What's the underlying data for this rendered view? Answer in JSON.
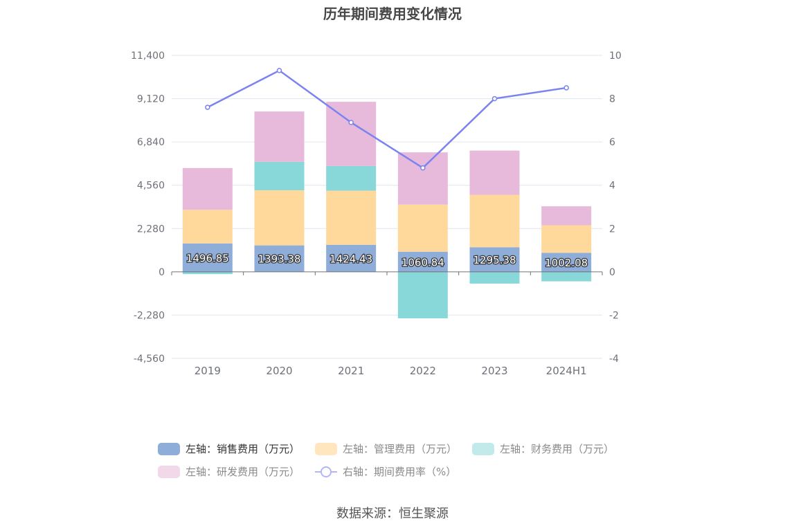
{
  "title": "历年期间费用变化情况",
  "source": "数据来源：恒生聚源",
  "chart_data": {
    "type": "bar",
    "stacked": true,
    "categories": [
      "2019",
      "2020",
      "2021",
      "2022",
      "2023",
      "2024H1"
    ],
    "left_axis": {
      "min": -4560,
      "max": 11400,
      "ticks": [
        "11,400",
        "9,120",
        "6,840",
        "4,560",
        "2,280",
        "0",
        "-2,280",
        "-4,560"
      ],
      "tick_values": [
        11400,
        9120,
        6840,
        4560,
        2280,
        0,
        -2280,
        -4560
      ]
    },
    "right_axis": {
      "min": -4,
      "max": 10,
      "ticks": [
        "10",
        "8",
        "6",
        "4",
        "2",
        "0",
        "-2",
        "-4"
      ],
      "tick_values": [
        10,
        8,
        6,
        4,
        2,
        0,
        -2,
        -4
      ]
    },
    "grid": true,
    "series": [
      {
        "name": "左轴：销售费用（万元）",
        "axis": "left",
        "kind": "bar",
        "color": "#8fadd9",
        "values": [
          1496.85,
          1393.38,
          1424.43,
          1060.84,
          1295.38,
          1002.08
        ],
        "labels": [
          "1496.85",
          "1393.38",
          "1424.43",
          "1060.84",
          "1295.38",
          "1002.08"
        ]
      },
      {
        "name": "左轴：管理费用（万元）",
        "axis": "left",
        "kind": "bar",
        "color": "#ffd99c",
        "values": [
          1770,
          2900,
          2850,
          2480,
          2760,
          1450
        ]
      },
      {
        "name": "左轴：财务费用（万元）",
        "axis": "left",
        "kind": "bar",
        "color": "#88d7d9",
        "values": [
          -120,
          1500,
          1300,
          -2450,
          -620,
          -500
        ]
      },
      {
        "name": "左轴：研发费用（万元）",
        "axis": "left",
        "kind": "bar",
        "color": "#e7b9da",
        "values": [
          2200,
          2650,
          3380,
          2750,
          2330,
          1000
        ]
      },
      {
        "name": "右轴：期间费用率（%）",
        "axis": "right",
        "kind": "line",
        "color": "#7b83f0",
        "values": [
          7.6,
          9.3,
          6.9,
          4.8,
          8.0,
          8.5
        ]
      }
    ],
    "legend_position": "bottom"
  },
  "legend": [
    {
      "label": "左轴：销售费用（万元）",
      "color": "#8fadd9",
      "kind": "bar",
      "active": true
    },
    {
      "label": "左轴：管理费用（万元）",
      "color": "#ffe6bf",
      "kind": "bar",
      "active": false
    },
    {
      "label": "左轴：财务费用（万元）",
      "color": "#c2eaeb",
      "kind": "bar",
      "active": false
    },
    {
      "label": "左轴：研发费用（万元）",
      "color": "#f2d9ea",
      "kind": "bar",
      "active": false
    },
    {
      "label": "右轴：期间费用率（%）",
      "color": "#b2b6f6",
      "kind": "line",
      "active": false
    }
  ]
}
